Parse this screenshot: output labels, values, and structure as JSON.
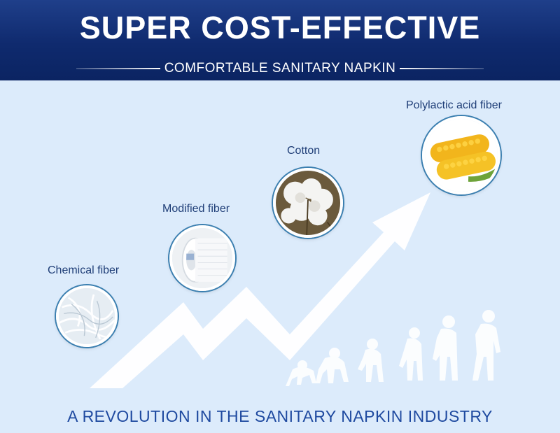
{
  "banner": {
    "title": "SUPER COST-EFFECTIVE",
    "subtitle": "COMFORTABLE SANITARY NAPKIN"
  },
  "stages": [
    {
      "label": "Chemical fiber",
      "icon": "chemical-fiber-image"
    },
    {
      "label": "Modified fiber",
      "icon": "modified-fiber-image"
    },
    {
      "label": "Cotton",
      "icon": "cotton-image"
    },
    {
      "label": "Polylactic acid fiber",
      "icon": "corn-image"
    }
  ],
  "footer": {
    "text": "A REVOLUTION IN THE SANITARY NAPKIN INDUSTRY"
  },
  "colors": {
    "banner": "#0f2a6e",
    "background": "#dcebfb",
    "label_text": "#1f3e77",
    "footer_text": "#1f4aa0",
    "circle_ring": "#3b7fb0"
  }
}
